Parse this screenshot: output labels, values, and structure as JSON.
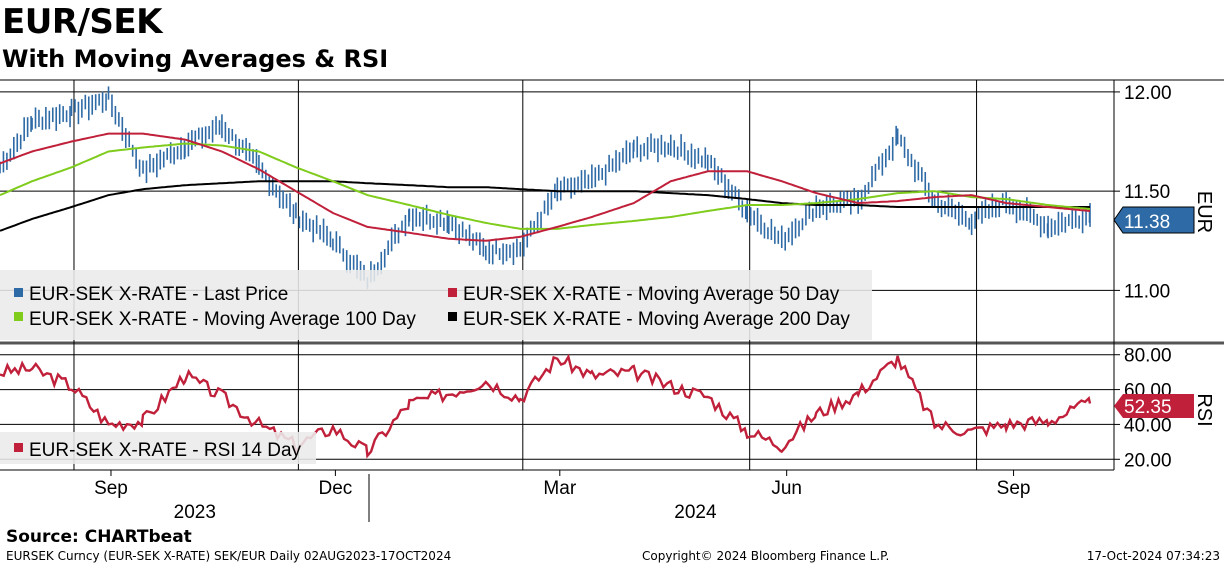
{
  "header": {
    "title": "EUR/SEK",
    "subtitle": "With Moving Averages & RSI"
  },
  "footer": {
    "source": "Source: CHARTbeat",
    "ticker_info": "EURSEK Curncy (EUR-SEK X-RATE) SEK/EUR  Daily 02AUG2023-17OCT2024",
    "copyright": "Copyright© 2024 Bloomberg Finance L.P.",
    "timestamp": "17-Oct-2024 07:34:23"
  },
  "colors": {
    "price": "#2e6aa6",
    "ma50": "#c0203a",
    "ma100": "#7fcc1c",
    "ma200": "#000000",
    "rsi": "#c0203a",
    "last_price_tag": "#2e6aa6",
    "last_rsi_tag": "#c0203a"
  },
  "chart_data": [
    {
      "type": "line",
      "panel": "price",
      "y_axis_label": "EUR",
      "ylim": [
        10.75,
        12.05
      ],
      "y_ticks": [
        "12.00",
        "11.50",
        "11.00"
      ],
      "grid": true,
      "legend_position": "bottom-left",
      "last_value_label": "11.38",
      "x_months": [
        "Sep",
        "Dec",
        "Mar",
        "Jun",
        "Sep"
      ],
      "x_years": [
        "2023",
        "2024"
      ],
      "x": [
        "2023-08-02",
        "2023-08-15",
        "2023-08-31",
        "2023-09-15",
        "2023-09-29",
        "2023-10-16",
        "2023-10-31",
        "2023-11-15",
        "2023-11-30",
        "2023-12-15",
        "2023-12-29",
        "2024-01-15",
        "2024-01-31",
        "2024-02-15",
        "2024-02-29",
        "2024-03-15",
        "2024-03-29",
        "2024-04-15",
        "2024-04-30",
        "2024-05-15",
        "2024-05-31",
        "2024-06-14",
        "2024-06-28",
        "2024-07-15",
        "2024-07-31",
        "2024-08-15",
        "2024-08-30",
        "2024-09-13",
        "2024-09-30",
        "2024-10-17"
      ],
      "series": [
        {
          "name": "EUR-SEK X-RATE - Last Price",
          "values": [
            11.62,
            11.85,
            11.9,
            11.97,
            11.6,
            11.73,
            11.83,
            11.62,
            11.38,
            11.25,
            11.05,
            11.38,
            11.35,
            11.2,
            11.21,
            11.5,
            11.55,
            11.71,
            11.73,
            11.65,
            11.4,
            11.25,
            11.42,
            11.45,
            11.77,
            11.45,
            11.35,
            11.45,
            11.32,
            11.38
          ]
        },
        {
          "name": "EUR-SEK X-RATE - Moving Average 50 Day",
          "values": [
            11.64,
            11.7,
            11.75,
            11.79,
            11.79,
            11.76,
            11.7,
            11.61,
            11.5,
            11.39,
            11.32,
            11.29,
            11.26,
            11.25,
            11.27,
            11.32,
            11.37,
            11.44,
            11.55,
            11.6,
            11.6,
            11.55,
            11.49,
            11.44,
            11.45,
            11.47,
            11.48,
            11.44,
            11.42,
            11.4
          ]
        },
        {
          "name": "EUR-SEK X-RATE - Moving Average 100 Day",
          "values": [
            11.48,
            11.55,
            11.62,
            11.7,
            11.72,
            11.74,
            11.73,
            11.7,
            11.62,
            11.55,
            11.48,
            11.43,
            11.38,
            11.34,
            11.31,
            11.31,
            11.33,
            11.35,
            11.37,
            11.4,
            11.43,
            11.43,
            11.44,
            11.46,
            11.49,
            11.5,
            11.47,
            11.46,
            11.43,
            11.41
          ]
        },
        {
          "name": "EUR-SEK X-RATE - Moving Average 200 Day",
          "values": [
            11.3,
            11.36,
            11.42,
            11.48,
            11.51,
            11.53,
            11.54,
            11.55,
            11.55,
            11.55,
            11.54,
            11.53,
            11.52,
            11.52,
            11.51,
            11.5,
            11.5,
            11.5,
            11.49,
            11.48,
            11.46,
            11.44,
            11.43,
            11.43,
            11.42,
            11.42,
            11.42,
            11.42,
            11.42,
            11.42
          ]
        }
      ]
    },
    {
      "type": "line",
      "panel": "rsi",
      "y_axis_label": "RSI",
      "ylim": [
        15,
        85
      ],
      "y_ticks": [
        "80.00",
        "60.00",
        "40.00",
        "20.00"
      ],
      "grid": true,
      "legend_position": "bottom-left",
      "last_value_label": "52.35",
      "x": [
        "2023-08-02",
        "2023-08-15",
        "2023-08-31",
        "2023-09-15",
        "2023-09-29",
        "2023-10-16",
        "2023-10-31",
        "2023-11-15",
        "2023-11-30",
        "2023-12-15",
        "2023-12-29",
        "2024-01-15",
        "2024-01-31",
        "2024-02-15",
        "2024-02-29",
        "2024-03-15",
        "2024-03-29",
        "2024-04-15",
        "2024-04-30",
        "2024-05-15",
        "2024-05-31",
        "2024-06-14",
        "2024-06-28",
        "2024-07-15",
        "2024-07-31",
        "2024-08-15",
        "2024-08-30",
        "2024-09-13",
        "2024-09-30",
        "2024-10-17"
      ],
      "series": [
        {
          "name": "EUR-SEK X-RATE - RSI 14 Day",
          "values": [
            70,
            72,
            62,
            40,
            42,
            68,
            56,
            40,
            28,
            38,
            24,
            52,
            58,
            65,
            55,
            78,
            68,
            70,
            62,
            56,
            36,
            28,
            46,
            58,
            78,
            40,
            36,
            40,
            42,
            52
          ]
        }
      ]
    }
  ]
}
